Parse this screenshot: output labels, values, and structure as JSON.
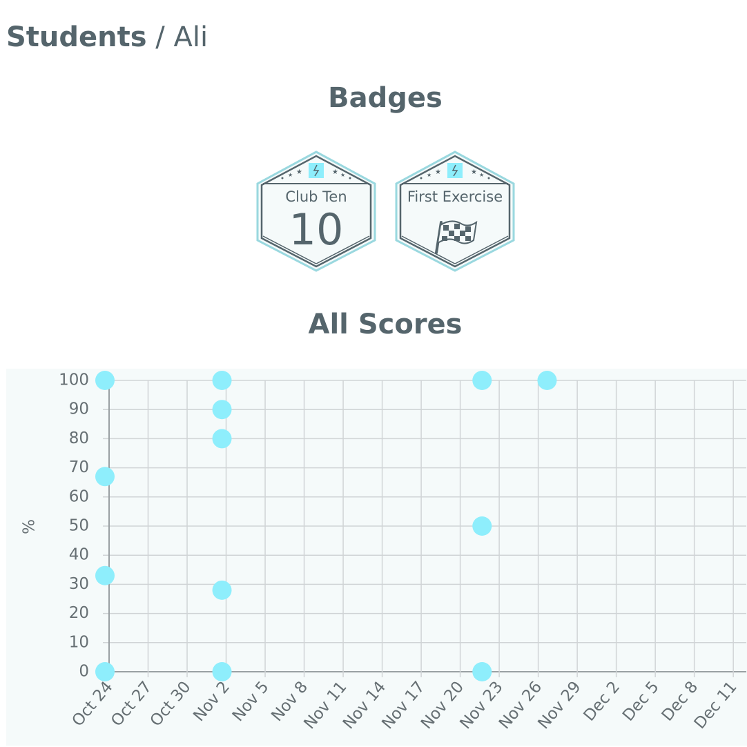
{
  "breadcrumb": {
    "root": "Students",
    "separator": "/",
    "current": "Ali"
  },
  "badges_title": "Badges",
  "badges": [
    {
      "name": "Club Ten",
      "number": "10",
      "icon": "club-ten-icon"
    },
    {
      "name": "First Exercise",
      "number": "",
      "icon": "checkered-flag-icon"
    }
  ],
  "scores_title": "All Scores",
  "colors": {
    "text": "#55656c",
    "point": "#8eeefc",
    "badge_border": "#9ad8df",
    "chart_bg": "#f5fafa"
  },
  "chart_data": {
    "type": "scatter",
    "title": "All Scores",
    "xlabel": "",
    "ylabel": "%",
    "ylim": [
      0,
      100
    ],
    "yticks": [
      0,
      10,
      20,
      30,
      40,
      50,
      60,
      70,
      80,
      90,
      100
    ],
    "xlim": [
      "Oct 24",
      "Dec 12"
    ],
    "xticks": [
      "Oct 24",
      "Oct 27",
      "Oct 30",
      "Nov 2",
      "Nov 5",
      "Nov 8",
      "Nov 11",
      "Nov 14",
      "Nov 17",
      "Nov 20",
      "Nov 23",
      "Nov 26",
      "Nov 29",
      "Dec 2",
      "Dec 5",
      "Dec 8",
      "Dec 11"
    ],
    "grid": true,
    "series": [
      {
        "points": [
          {
            "x": "Oct 24",
            "y": 100
          },
          {
            "x": "Oct 24",
            "y": 67
          },
          {
            "x": "Oct 24",
            "y": 33
          },
          {
            "x": "Oct 24",
            "y": 0
          },
          {
            "x": "Nov 2",
            "y": 100
          },
          {
            "x": "Nov 2",
            "y": 90
          },
          {
            "x": "Nov 2",
            "y": 80
          },
          {
            "x": "Nov 2",
            "y": 28
          },
          {
            "x": "Nov 2",
            "y": 0
          },
          {
            "x": "Nov 22",
            "y": 100
          },
          {
            "x": "Nov 22",
            "y": 50
          },
          {
            "x": "Nov 22",
            "y": 0
          },
          {
            "x": "Nov 27",
            "y": 100
          }
        ]
      }
    ]
  }
}
